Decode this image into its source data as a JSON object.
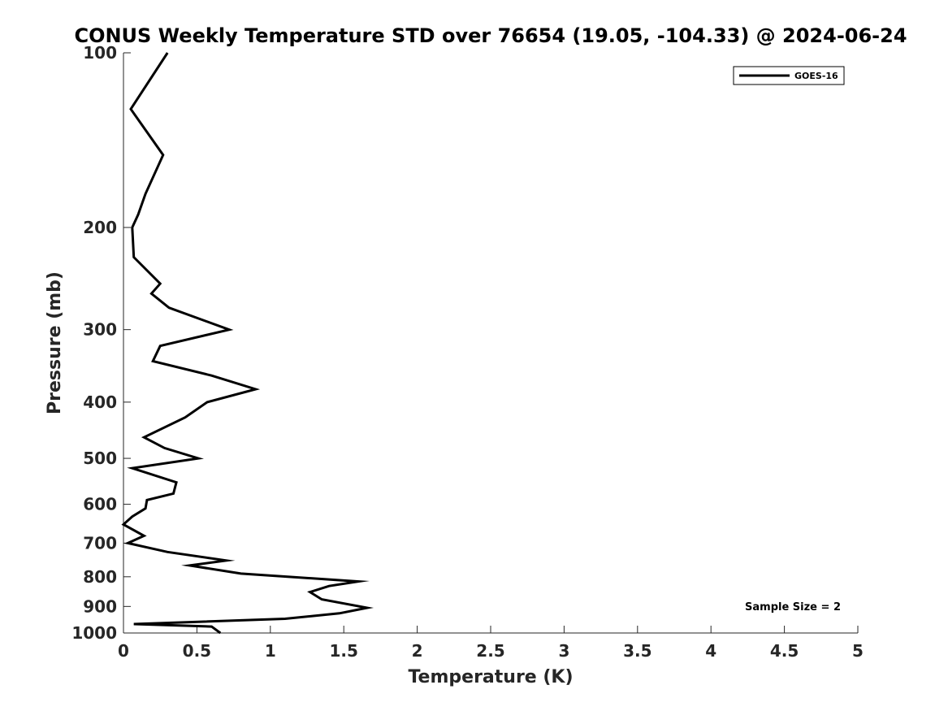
{
  "chart_data": {
    "type": "line",
    "title": "CONUS Weekly Temperature STD over 76654 (19.05, -104.33) @ 2024-06-24",
    "xlabel": "Temperature (K)",
    "ylabel": "Pressure (mb)",
    "xlim": [
      0,
      5
    ],
    "ylim": [
      100,
      1000
    ],
    "yscale": "log-reversed",
    "xticks": [
      0,
      0.5,
      1,
      1.5,
      2,
      2.5,
      3,
      3.5,
      4,
      4.5,
      5
    ],
    "xtick_labels": [
      "0",
      "0.5",
      "1",
      "1.5",
      "2",
      "2.5",
      "3",
      "3.5",
      "4",
      "4.5",
      "5"
    ],
    "yticks": [
      100,
      200,
      300,
      400,
      500,
      600,
      700,
      800,
      900,
      1000
    ],
    "ytick_labels": [
      "100",
      "200",
      "300",
      "400",
      "500",
      "600",
      "700",
      "800",
      "900",
      "1000"
    ],
    "legend_position": "top-right",
    "annotation": "Sample Size = 2",
    "series": [
      {
        "name": "GOES-16",
        "color": "#000000",
        "points": [
          [
            0.3,
            100
          ],
          [
            0.05,
            125
          ],
          [
            0.27,
            150
          ],
          [
            0.15,
            175
          ],
          [
            0.1,
            190
          ],
          [
            0.06,
            200
          ],
          [
            0.07,
            225
          ],
          [
            0.25,
            250
          ],
          [
            0.19,
            260
          ],
          [
            0.31,
            275
          ],
          [
            0.72,
            300
          ],
          [
            0.25,
            320
          ],
          [
            0.2,
            340
          ],
          [
            0.6,
            360
          ],
          [
            0.9,
            380
          ],
          [
            0.57,
            400
          ],
          [
            0.42,
            425
          ],
          [
            0.14,
            460
          ],
          [
            0.28,
            480
          ],
          [
            0.51,
            500
          ],
          [
            0.06,
            520
          ],
          [
            0.36,
            550
          ],
          [
            0.34,
            575
          ],
          [
            0.16,
            590
          ],
          [
            0.15,
            610
          ],
          [
            0.06,
            630
          ],
          [
            0.0,
            650
          ],
          [
            0.14,
            680
          ],
          [
            0.03,
            700
          ],
          [
            0.3,
            725
          ],
          [
            0.7,
            750
          ],
          [
            0.45,
            765
          ],
          [
            0.8,
            790
          ],
          [
            1.6,
            815
          ],
          [
            1.4,
            830
          ],
          [
            1.27,
            850
          ],
          [
            1.35,
            875
          ],
          [
            1.66,
            905
          ],
          [
            1.47,
            925
          ],
          [
            1.1,
            945
          ],
          [
            0.07,
            965
          ],
          [
            0.6,
            975
          ],
          [
            0.66,
            1000
          ]
        ]
      }
    ]
  }
}
